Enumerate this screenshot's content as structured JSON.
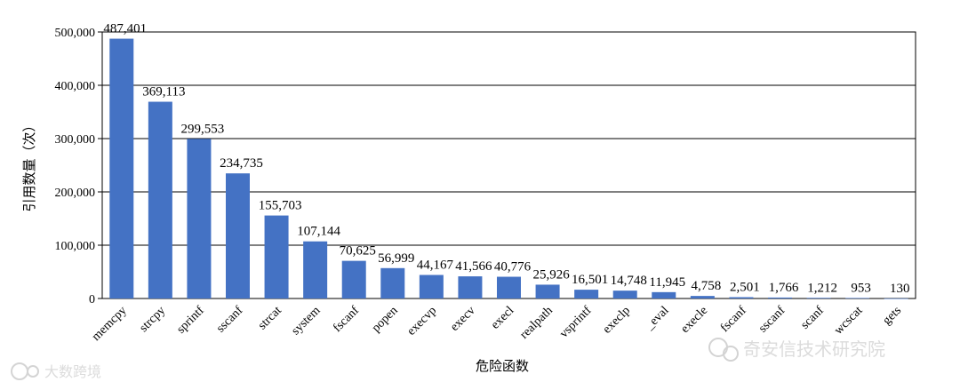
{
  "chart_data": {
    "type": "bar",
    "categories": [
      "memcpy",
      "strcpy",
      "sprintf",
      "sscanf",
      "strcat",
      "system",
      "fscanf",
      "popen",
      "execvp",
      "execv",
      "execl",
      "realpath",
      "vsprintf",
      "execlp",
      "_eval",
      "execle",
      "fscanf",
      "sscanf",
      "scanf",
      "wcscat",
      "gets"
    ],
    "tick_labels_display": [
      "memcpy",
      "strcpy",
      "sprintf",
      "sscanf",
      "strcat",
      "system",
      "fscanf",
      "popen",
      "execvp",
      "execv",
      "execl",
      "realpath",
      "vsprintf",
      "execlp",
      "_eval",
      "execle",
      "fscanf",
      "sscanf",
      "scanf",
      "wcscat",
      "gets"
    ],
    "values": [
      487401,
      369113,
      299553,
      234735,
      155703,
      107144,
      70625,
      56999,
      44167,
      41566,
      40776,
      25926,
      16501,
      14748,
      11945,
      4758,
      2501,
      1766,
      1212,
      953,
      130
    ],
    "data_labels": [
      "487,401",
      "369,113",
      "299,553",
      "234,735",
      "155,703",
      "107,144",
      "70,625",
      "56,999",
      "44,167",
      "41,566",
      "40,776",
      "25,926",
      "16,501",
      "14,748",
      "11,945",
      "4,758",
      "2,501",
      "1,766",
      "1,212",
      "953",
      "130"
    ],
    "yticks": [
      0,
      100000,
      200000,
      300000,
      400000,
      500000
    ],
    "ytick_labels": [
      "0",
      "100,000",
      "200,000",
      "300,000",
      "400,000",
      "500,000"
    ],
    "ylim": [
      0,
      500000
    ],
    "xlabel": "危险函数",
    "ylabel": "引用数量（次）",
    "title": "",
    "grid": "horizontal",
    "bar_color": "#4472C4"
  },
  "watermarks": {
    "left": "大数跨境",
    "right": "奇安信技术研究院"
  }
}
